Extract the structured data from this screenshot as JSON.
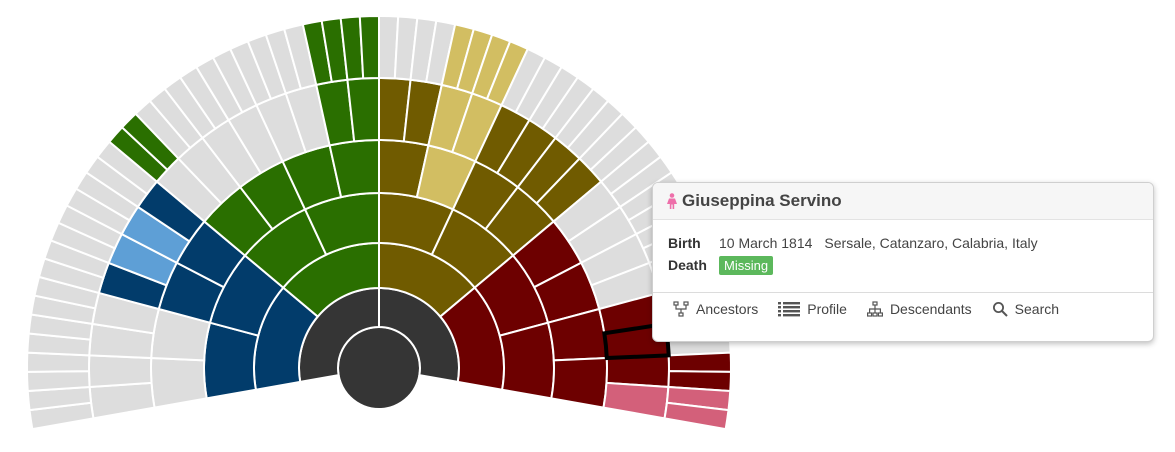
{
  "fan_chart": {
    "colors": {
      "root": "#353535",
      "paternal_paternal": "#2a6f00",
      "paternal_paternal_light": "#8ed65b",
      "paternal_maternal": "#023c6b",
      "paternal_maternal_light": "#5e9fd6",
      "maternal_paternal": "#705b00",
      "maternal_paternal_light": "#d2be62",
      "maternal_maternal": "#6d0000",
      "maternal_maternal_light": "#d3607a",
      "unknown": "#dddddd"
    },
    "selected_person_index": 0
  },
  "tooltip": {
    "name": "Giuseppina Servino",
    "gender_icon": "female-person-icon",
    "gender_color": "#ee6faa",
    "birth_label": "Birth",
    "birth_date": "10 March 1814",
    "birth_place": "Sersale, Catanzaro, Calabria, Italy",
    "death_label": "Death",
    "death_value": "Missing",
    "actions": [
      {
        "label": "Ancestors",
        "icon": "ancestors-tree-icon"
      },
      {
        "label": "Profile",
        "icon": "profile-list-icon"
      },
      {
        "label": "Descendants",
        "icon": "descendants-tree-icon"
      },
      {
        "label": "Search",
        "icon": "search-icon"
      }
    ]
  }
}
